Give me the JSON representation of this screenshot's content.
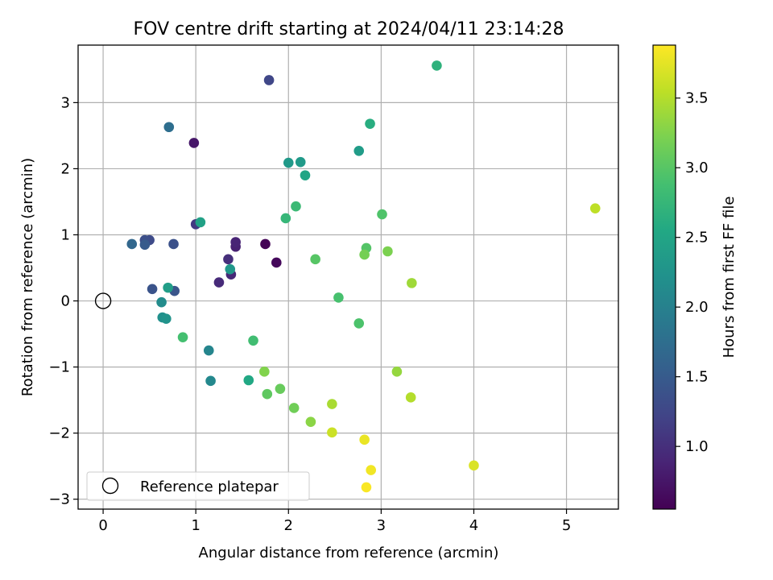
{
  "chart_data": {
    "type": "scatter",
    "title": "FOV centre drift starting at 2024/04/11 23:14:28",
    "xlabel": "Angular distance from reference (arcmin)",
    "ylabel": "Rotation from reference (arcmin)",
    "xlim": [
      -0.27,
      5.56
    ],
    "ylim": [
      -3.15,
      3.87
    ],
    "xticks": [
      0,
      1,
      2,
      3,
      4,
      5
    ],
    "xtick_labels": [
      "0",
      "1",
      "2",
      "3",
      "4",
      "5"
    ],
    "yticks": [
      -3,
      -2,
      -1,
      0,
      1,
      2,
      3
    ],
    "ytick_labels": [
      "−3",
      "−2",
      "−1",
      "0",
      "1",
      "2",
      "3"
    ],
    "grid": true,
    "legend": {
      "position": "lower-left",
      "entries": [
        "Reference platepar"
      ]
    },
    "reference_point": {
      "x": 0,
      "y": 0,
      "name": "Reference platepar"
    },
    "colorbar": {
      "label": "Hours from first FF file",
      "range": [
        0.55,
        3.88
      ],
      "ticks": [
        1.0,
        1.5,
        2.0,
        2.5,
        3.0,
        3.5
      ],
      "tick_labels": [
        "1.0",
        "1.5",
        "2.0",
        "2.5",
        "3.0",
        "3.5"
      ],
      "colormap": "viridis"
    },
    "points": [
      {
        "x": 1.75,
        "y": 0.86,
        "h": 0.57
      },
      {
        "x": 1.87,
        "y": 0.58,
        "h": 0.62
      },
      {
        "x": 0.98,
        "y": 2.39,
        "h": 0.75
      },
      {
        "x": 1.43,
        "y": 0.82,
        "h": 0.85
      },
      {
        "x": 1.43,
        "y": 0.89,
        "h": 0.88
      },
      {
        "x": 1.38,
        "y": 0.4,
        "h": 0.92
      },
      {
        "x": 1.25,
        "y": 0.28,
        "h": 0.95
      },
      {
        "x": 1.35,
        "y": 0.63,
        "h": 1.0
      },
      {
        "x": 1.0,
        "y": 1.16,
        "h": 1.1
      },
      {
        "x": 1.79,
        "y": 3.34,
        "h": 1.25
      },
      {
        "x": 0.5,
        "y": 0.92,
        "h": 1.3
      },
      {
        "x": 0.45,
        "y": 0.92,
        "h": 1.35
      },
      {
        "x": 0.76,
        "y": 0.86,
        "h": 1.38
      },
      {
        "x": 0.53,
        "y": 0.18,
        "h": 1.4
      },
      {
        "x": 0.77,
        "y": 0.15,
        "h": 1.42
      },
      {
        "x": 0.45,
        "y": 0.85,
        "h": 1.5
      },
      {
        "x": 0.31,
        "y": 0.86,
        "h": 1.65
      },
      {
        "x": 0.71,
        "y": 2.63,
        "h": 1.75
      },
      {
        "x": 1.14,
        "y": -0.75,
        "h": 2.05
      },
      {
        "x": 1.16,
        "y": -1.21,
        "h": 2.1
      },
      {
        "x": 0.63,
        "y": -0.02,
        "h": 2.15
      },
      {
        "x": 0.64,
        "y": -0.25,
        "h": 2.2
      },
      {
        "x": 0.68,
        "y": -0.27,
        "h": 2.25
      },
      {
        "x": 1.37,
        "y": 0.48,
        "h": 2.3
      },
      {
        "x": 2.0,
        "y": 2.09,
        "h": 2.33
      },
      {
        "x": 2.13,
        "y": 2.1,
        "h": 2.35
      },
      {
        "x": 2.76,
        "y": 2.27,
        "h": 2.38
      },
      {
        "x": 0.7,
        "y": 0.2,
        "h": 2.4
      },
      {
        "x": 1.05,
        "y": 1.19,
        "h": 2.45
      },
      {
        "x": 2.18,
        "y": 1.9,
        "h": 2.5
      },
      {
        "x": 1.57,
        "y": -1.2,
        "h": 2.55
      },
      {
        "x": 2.88,
        "y": 2.68,
        "h": 2.62
      },
      {
        "x": 3.6,
        "y": 3.56,
        "h": 2.68
      },
      {
        "x": 1.97,
        "y": 1.25,
        "h": 2.75
      },
      {
        "x": 2.08,
        "y": 1.43,
        "h": 2.8
      },
      {
        "x": 1.62,
        "y": -0.6,
        "h": 2.85
      },
      {
        "x": 0.86,
        "y": -0.55,
        "h": 2.88
      },
      {
        "x": 2.54,
        "y": 0.05,
        "h": 2.9
      },
      {
        "x": 2.76,
        "y": -0.34,
        "h": 2.93
      },
      {
        "x": 3.01,
        "y": 1.31,
        "h": 2.95
      },
      {
        "x": 2.84,
        "y": 0.8,
        "h": 2.98
      },
      {
        "x": 2.29,
        "y": 0.63,
        "h": 3.0
      },
      {
        "x": 1.77,
        "y": -1.41,
        "h": 3.05
      },
      {
        "x": 1.91,
        "y": -1.33,
        "h": 3.1
      },
      {
        "x": 2.06,
        "y": -1.62,
        "h": 3.15
      },
      {
        "x": 2.82,
        "y": 0.7,
        "h": 3.18
      },
      {
        "x": 3.07,
        "y": 0.75,
        "h": 3.22
      },
      {
        "x": 1.74,
        "y": -1.07,
        "h": 3.25
      },
      {
        "x": 2.24,
        "y": -1.83,
        "h": 3.3
      },
      {
        "x": 3.17,
        "y": -1.07,
        "h": 3.35
      },
      {
        "x": 3.33,
        "y": 0.27,
        "h": 3.4
      },
      {
        "x": 2.47,
        "y": -1.56,
        "h": 3.45
      },
      {
        "x": 3.32,
        "y": -1.46,
        "h": 3.5
      },
      {
        "x": 5.31,
        "y": 1.4,
        "h": 3.55
      },
      {
        "x": 2.47,
        "y": -1.99,
        "h": 3.62
      },
      {
        "x": 4.0,
        "y": -2.49,
        "h": 3.7
      },
      {
        "x": 2.82,
        "y": -2.1,
        "h": 3.78
      },
      {
        "x": 2.89,
        "y": -2.56,
        "h": 3.82
      },
      {
        "x": 2.84,
        "y": -2.82,
        "h": 3.86
      }
    ]
  }
}
